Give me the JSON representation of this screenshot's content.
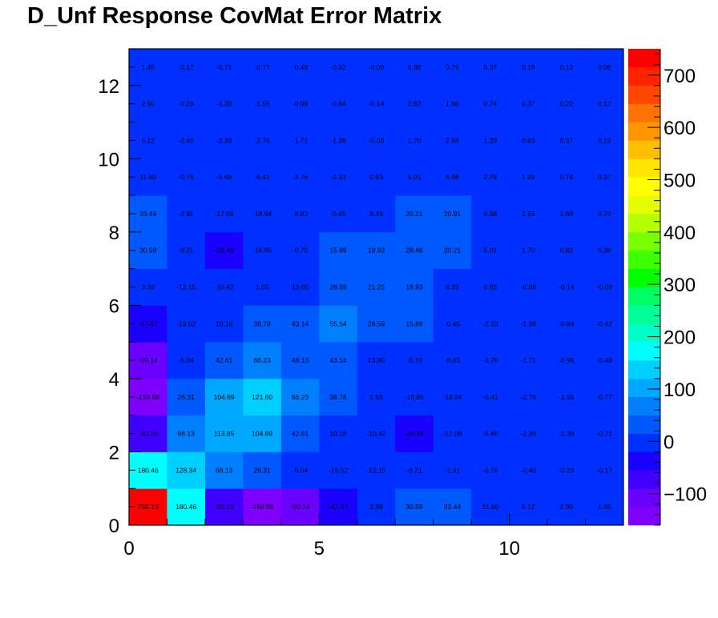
{
  "chart_data": {
    "type": "heatmap",
    "title": "D_Unf Response CovMat Error Matrix",
    "xlabel": "",
    "ylabel": "",
    "xlim": [
      0,
      13
    ],
    "ylim": [
      0,
      13
    ],
    "x_ticks": [
      "0",
      "5",
      "10"
    ],
    "y_ticks": [
      "0",
      "2",
      "4",
      "6",
      "8",
      "10",
      "12"
    ],
    "z_range": [
      -160.13,
      750.13
    ],
    "colorbar_ticks": [
      "−100",
      "0",
      "100",
      "200",
      "300",
      "400",
      "500",
      "600",
      "700"
    ],
    "grid": false,
    "rows": [
      {
        "y_bin": 0,
        "values": [
          750.13,
          180.46,
          -90.1,
          -159.98,
          -90.14,
          -47.67,
          3.39,
          30.59,
          33.44,
          11.6,
          5.12,
          2.9,
          1.45
        ],
        "labels": [
          "750.13",
          "180.46",
          "-90.10",
          "-159.98",
          "-90.14",
          "-47.67",
          "3.39",
          "30.59",
          "33.44",
          "11.60",
          "5.12",
          "2.90",
          "1.45"
        ]
      },
      {
        "y_bin": 1,
        "values": [
          180.46,
          128.34,
          68.13,
          26.31,
          -5.04,
          -19.52,
          -12.15,
          -8.21,
          -2.91,
          -0.76,
          -0.4,
          -0.29,
          -0.17
        ],
        "labels": [
          "180.46",
          "128.34",
          "68.13",
          "26.31",
          "-5.04",
          "-19.52",
          "-12.15",
          "-8.21",
          "-2.91",
          "-0.76",
          "-0.40",
          "-0.29",
          "-0.17"
        ]
      },
      {
        "y_bin": 2,
        "values": [
          -90.1,
          68.13,
          113.85,
          104.69,
          42.61,
          10.18,
          -10.42,
          -20.49,
          -17.08,
          -5.48,
          -2.39,
          -1.39,
          -0.71
        ],
        "labels": [
          "-90.10",
          "68.13",
          "113.85",
          "104.69",
          "42.61",
          "10.18",
          "-10.42",
          "-20.49",
          "-17.08",
          "-5.48",
          "-2.39",
          "-1.39",
          "-0.71"
        ]
      },
      {
        "y_bin": 3,
        "values": [
          -159.98,
          26.31,
          104.69,
          121.6,
          66.23,
          38.78,
          1.55,
          -16.65,
          -18.94,
          -6.41,
          -2.76,
          -1.55,
          -0.77
        ],
        "labels": [
          "-159.98",
          "26.31",
          "104.69",
          "121.60",
          "66.23",
          "38.78",
          "1.55",
          "-16.65",
          "-18.94",
          "-6.41",
          "-2.76",
          "-1.55",
          "-0.77"
        ]
      },
      {
        "y_bin": 4,
        "values": [
          -90.14,
          -5.04,
          42.61,
          66.23,
          48.13,
          43.14,
          13.8,
          -0.7,
          -8.83,
          -3.76,
          -1.71,
          -0.96,
          -0.48
        ],
        "labels": [
          "-90.14",
          "-5.04",
          "42.61",
          "66.23",
          "48.13",
          "43.14",
          "13.80",
          "-0.70",
          "-8.83",
          "-3.76",
          "-1.71",
          "-0.96",
          "-0.48"
        ]
      },
      {
        "y_bin": 5,
        "values": [
          -47.67,
          -19.52,
          10.18,
          38.78,
          43.14,
          55.54,
          28.59,
          15.89,
          -0.45,
          -2.33,
          -1.38,
          -0.84,
          -0.42
        ],
        "labels": [
          "-47.67",
          "-19.52",
          "10.18",
          "38.78",
          "43.14",
          "55.54",
          "28.59",
          "15.89",
          "-0.45",
          "-2.33",
          "-1.38",
          "-0.84",
          "-0.42"
        ]
      },
      {
        "y_bin": 6,
        "values": [
          3.39,
          -12.15,
          -10.42,
          1.55,
          13.8,
          28.59,
          21.25,
          19.93,
          8.33,
          0.83,
          -0.06,
          -0.14,
          -0.09
        ],
        "labels": [
          "3.39",
          "-12.15",
          "-10.42",
          "1.55",
          "13.80",
          "28.59",
          "21.25",
          "19.93",
          "8.33",
          "0.83",
          "-0.06",
          "-0.14",
          "-0.09"
        ]
      },
      {
        "y_bin": 7,
        "values": [
          30.59,
          -8.21,
          -20.49,
          -16.65,
          -0.7,
          15.89,
          19.93,
          28.46,
          20.21,
          5.01,
          1.7,
          0.82,
          0.38
        ],
        "labels": [
          "30.59",
          "-8.21",
          "-20.49",
          "-16.65",
          "-0.70",
          "15.89",
          "19.93",
          "28.46",
          "20.21",
          "5.01",
          "1.70",
          "0.82",
          "0.38"
        ]
      },
      {
        "y_bin": 8,
        "values": [
          33.44,
          -2.91,
          -17.08,
          -18.94,
          -8.83,
          -0.45,
          8.33,
          20.21,
          20.91,
          6.98,
          2.93,
          1.6,
          0.79
        ],
        "labels": [
          "33.44",
          "-2.91",
          "-17.08",
          "-18.94",
          "-8.83",
          "-0.45",
          "8.33",
          "20.21",
          "20.91",
          "6.98",
          "2.93",
          "1.60",
          "0.79"
        ]
      },
      {
        "y_bin": 9,
        "values": [
          11.6,
          -0.76,
          -5.48,
          -6.41,
          -3.76,
          -2.33,
          0.83,
          5.01,
          6.98,
          2.78,
          1.29,
          0.74,
          0.37
        ],
        "labels": [
          "11.60",
          "-0.76",
          "-5.48",
          "-6.41",
          "-3.76",
          "-2.33",
          "0.83",
          "5.01",
          "6.98",
          "2.78",
          "1.29",
          "0.74",
          "0.37"
        ]
      },
      {
        "y_bin": 10,
        "values": [
          5.12,
          -0.4,
          -2.39,
          -2.76,
          -1.71,
          -1.38,
          -0.06,
          1.7,
          2.93,
          1.29,
          0.63,
          0.37,
          0.19
        ],
        "labels": [
          "5.12",
          "-0.40",
          "-2.39",
          "-2.76",
          "-1.71",
          "-1.38",
          "-0.06",
          "1.70",
          "2.93",
          "1.29",
          "0.63",
          "0.37",
          "0.19"
        ]
      },
      {
        "y_bin": 11,
        "values": [
          2.9,
          -0.29,
          -1.39,
          -1.55,
          -0.96,
          -0.84,
          -0.14,
          0.82,
          1.6,
          0.74,
          0.37,
          0.22,
          0.12
        ],
        "labels": [
          "2.90",
          "-0.29",
          "-1.39",
          "-1.55",
          "-0.96",
          "-0.84",
          "-0.14",
          "0.82",
          "1.60",
          "0.74",
          "0.37",
          "0.22",
          "0.12"
        ]
      },
      {
        "y_bin": 12,
        "values": [
          1.45,
          -0.17,
          -0.71,
          -0.77,
          -0.48,
          -0.42,
          -0.09,
          0.38,
          0.79,
          0.37,
          0.19,
          0.12,
          0.06
        ],
        "labels": [
          "1.45",
          "-0.17",
          "-0.71",
          "-0.77",
          "-0.48",
          "-0.42",
          "-0.09",
          "0.38",
          "0.79",
          "0.37",
          "0.19",
          "0.12",
          "0.06"
        ]
      }
    ],
    "palette": [
      "#7f00ff",
      "#6a00ff",
      "#4000ff",
      "#1a00ff",
      "#0030ff",
      "#0058ff",
      "#0080ff",
      "#00a8ff",
      "#00d0ff",
      "#00ffff",
      "#00ffc8",
      "#00ff96",
      "#00ff64",
      "#00ff00",
      "#3cff00",
      "#78ff00",
      "#b4ff00",
      "#e6ff00",
      "#ffff00",
      "#ffe600",
      "#ffbf00",
      "#ff9600",
      "#ff7300",
      "#ff4600",
      "#ff2300",
      "#ff0000"
    ]
  }
}
